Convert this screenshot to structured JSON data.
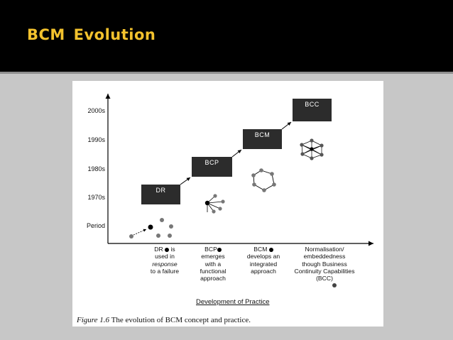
{
  "slide": {
    "title": "BCM Evolution"
  },
  "figure": {
    "y_axis_labels": [
      "2000s",
      "1990s",
      "1980s",
      "1970s",
      "Period"
    ],
    "boxes": [
      "DR",
      "BCP",
      "BCM",
      "BCC"
    ],
    "stages": [
      {
        "line1": "DR",
        "line2": "is",
        "line3": "used in",
        "line4": "response",
        "line5": "to a failure"
      },
      {
        "line1": "BCP",
        "line2": "emerges",
        "line3": "with a",
        "line4": "functional",
        "line5": "approach"
      },
      {
        "line1": "BCM",
        "line2": "develops an",
        "line3": "integrated",
        "line4": "approach"
      },
      {
        "line1": "Normalisation/",
        "line2": "embeddedness",
        "line3": "though Business",
        "line4": "Continuity Capabilities",
        "line5": "(BCC)"
      }
    ],
    "x_axis_label": "Development of Practice",
    "caption_label": "Figure 1.6",
    "caption_text": "The evolution of BCM concept and practice."
  },
  "colors": {
    "header_bg": "#000000",
    "title": "#f3c22d",
    "slide_bg": "#c7c7c7",
    "box_bg": "#2c2c2c"
  }
}
